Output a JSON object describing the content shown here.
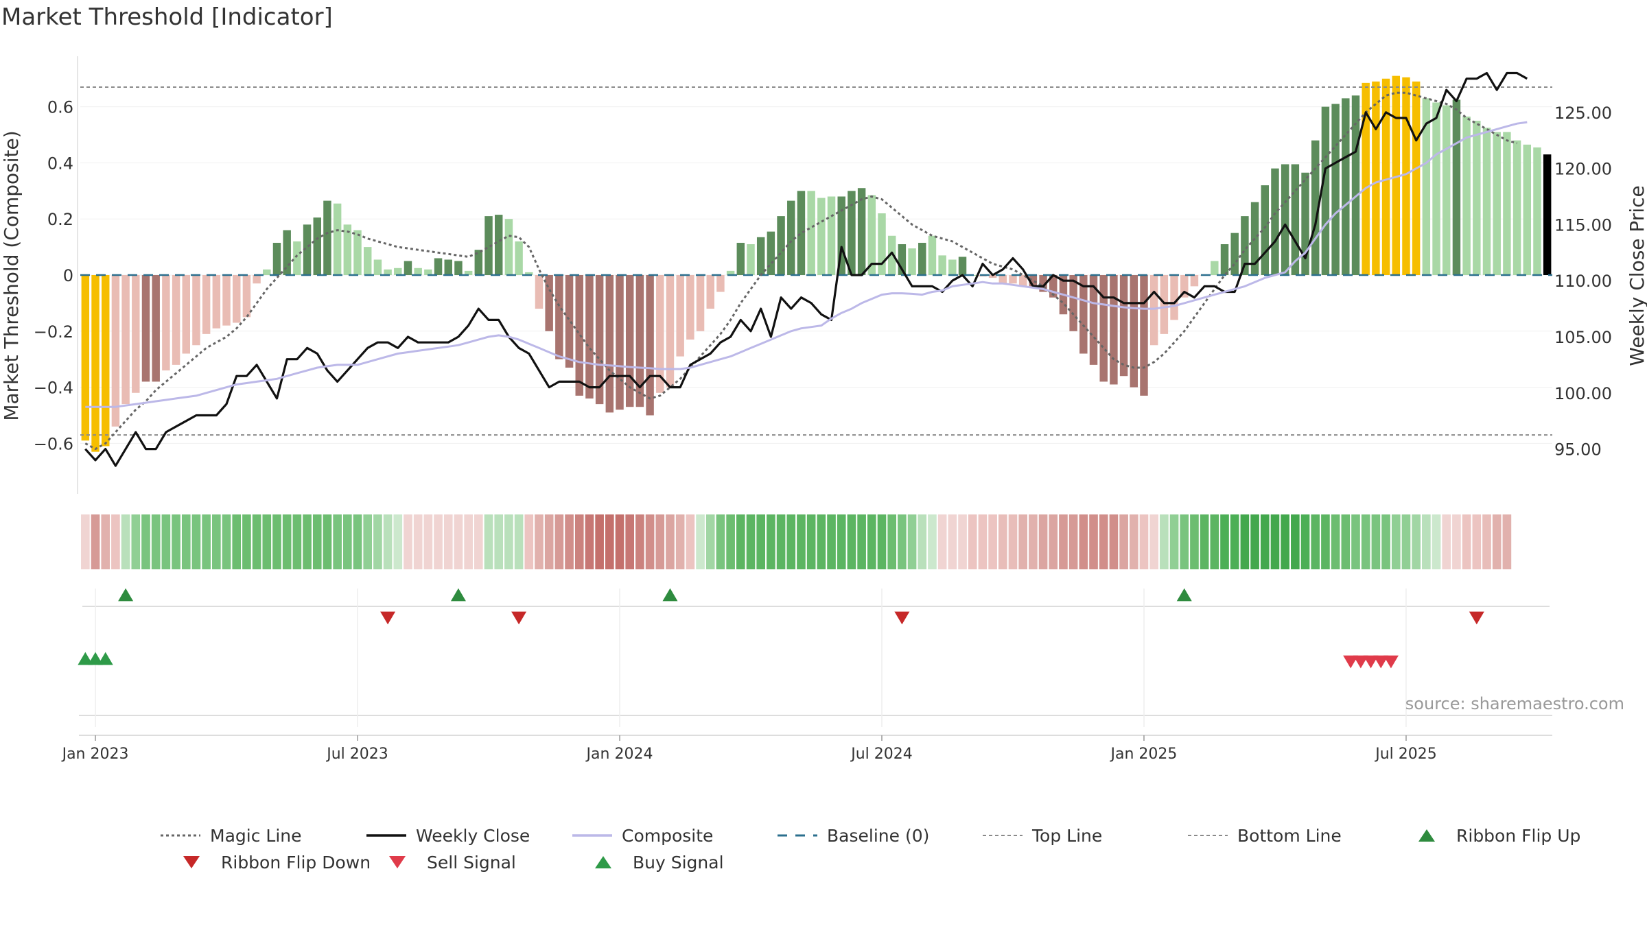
{
  "chart_data": {
    "type": "bar",
    "title": "Market Threshold [Indicator]",
    "ylabel_left": "Market Threshold (Composite)",
    "ylabel_right": "Weekly Close Price",
    "source": "source: sharemaestro.com",
    "ylim_left": [
      -0.78,
      0.78
    ],
    "ylim_right": [
      91.0,
      130.0
    ],
    "y_ticks_left": [
      {
        "v": 0.6,
        "label": "0.6"
      },
      {
        "v": 0.4,
        "label": "0.4"
      },
      {
        "v": 0.2,
        "label": "0.2"
      },
      {
        "v": 0,
        "label": "0"
      },
      {
        "v": -0.2,
        "label": "−0.2"
      },
      {
        "v": -0.4,
        "label": "−0.4"
      },
      {
        "v": -0.6,
        "label": "−0.6"
      }
    ],
    "y_ticks_right": [
      {
        "v": 125,
        "label": "125.00"
      },
      {
        "v": 120,
        "label": "120.00"
      },
      {
        "v": 115,
        "label": "115.00"
      },
      {
        "v": 110,
        "label": "110.00"
      },
      {
        "v": 105,
        "label": "105.00"
      },
      {
        "v": 100,
        "label": "100.00"
      },
      {
        "v": 95,
        "label": "95.00"
      }
    ],
    "x_ticks": [
      {
        "week": 1.5,
        "label": "Jan 2023"
      },
      {
        "week": 27.5,
        "label": "Jul 2023"
      },
      {
        "week": 53.5,
        "label": "Jan 2024"
      },
      {
        "week": 79.5,
        "label": "Jul 2024"
      },
      {
        "week": 105.5,
        "label": "Jan 2025"
      },
      {
        "week": 131.5,
        "label": "Jul 2025"
      }
    ],
    "top_line": 0.67,
    "bottom_line": -0.57,
    "baseline": 0,
    "bars": {
      "values": [
        -0.59,
        -0.63,
        -0.61,
        -0.54,
        -0.46,
        -0.42,
        -0.38,
        -0.38,
        -0.34,
        -0.32,
        -0.28,
        -0.25,
        -0.21,
        -0.19,
        -0.18,
        -0.17,
        -0.15,
        -0.03,
        0.02,
        0.115,
        0.16,
        0.12,
        0.18,
        0.205,
        0.265,
        0.255,
        0.18,
        0.16,
        0.1,
        0.055,
        0.02,
        0.025,
        0.05,
        0.025,
        0.02,
        0.06,
        0.055,
        0.05,
        0.015,
        0.09,
        0.21,
        0.215,
        0.2,
        0.12,
        0.01,
        -0.12,
        -0.2,
        -0.3,
        -0.33,
        -0.43,
        -0.44,
        -0.46,
        -0.49,
        -0.48,
        -0.47,
        -0.47,
        -0.5,
        -0.42,
        -0.4,
        -0.29,
        -0.23,
        -0.2,
        -0.12,
        -0.06,
        0.015,
        0.115,
        0.11,
        0.135,
        0.155,
        0.21,
        0.265,
        0.3,
        0.3,
        0.275,
        0.28,
        0.28,
        0.3,
        0.31,
        0.285,
        0.22,
        0.14,
        0.11,
        0.095,
        0.115,
        0.14,
        0.07,
        0.055,
        0.065,
        0.0,
        -0.005,
        -0.01,
        -0.03,
        -0.03,
        -0.04,
        -0.04,
        -0.06,
        -0.08,
        -0.14,
        -0.2,
        -0.28,
        -0.32,
        -0.38,
        -0.39,
        -0.36,
        -0.4,
        -0.43,
        -0.25,
        -0.21,
        -0.16,
        -0.08,
        -0.04,
        0.0,
        0.05,
        0.11,
        0.15,
        0.21,
        0.26,
        0.32,
        0.38,
        0.395,
        0.395,
        0.365,
        0.48,
        0.6,
        0.61,
        0.63,
        0.64,
        0.685,
        0.69,
        0.7,
        0.71,
        0.705,
        0.69,
        0.63,
        0.615,
        0.605,
        0.625,
        0.565,
        0.55,
        0.525,
        0.51,
        0.51,
        0.48,
        0.465,
        0.455,
        0.43
      ],
      "colors": [
        "#f6be00",
        "#f6be00",
        "#f6be00",
        "#e9bcb4",
        "#e9bcb4",
        "#e9bcb4",
        "#a8746f",
        "#a8746f",
        "#e9bcb4",
        "#e9bcb4",
        "#e9bcb4",
        "#e9bcb4",
        "#e9bcb4",
        "#e9bcb4",
        "#e9bcb4",
        "#e9bcb4",
        "#e9bcb4",
        "#e9bcb4",
        "#a9d8a6",
        "#5c8c5b",
        "#5c8c5b",
        "#a9d8a6",
        "#5c8c5b",
        "#5c8c5b",
        "#5c8c5b",
        "#a9d8a6",
        "#a9d8a6",
        "#a9d8a6",
        "#a9d8a6",
        "#a9d8a6",
        "#a9d8a6",
        "#a9d8a6",
        "#5c8c5b",
        "#a9d8a6",
        "#a9d8a6",
        "#5c8c5b",
        "#5c8c5b",
        "#5c8c5b",
        "#a9d8a6",
        "#5c8c5b",
        "#5c8c5b",
        "#5c8c5b",
        "#a9d8a6",
        "#a9d8a6",
        "#a9d8a6",
        "#e9bcb4",
        "#a8746f",
        "#a8746f",
        "#a8746f",
        "#a8746f",
        "#a8746f",
        "#a8746f",
        "#a8746f",
        "#a8746f",
        "#a8746f",
        "#a8746f",
        "#a8746f",
        "#e9bcb4",
        "#e9bcb4",
        "#e9bcb4",
        "#e9bcb4",
        "#e9bcb4",
        "#e9bcb4",
        "#e9bcb4",
        "#a9d8a6",
        "#5c8c5b",
        "#a9d8a6",
        "#5c8c5b",
        "#5c8c5b",
        "#5c8c5b",
        "#5c8c5b",
        "#5c8c5b",
        "#a9d8a6",
        "#a9d8a6",
        "#a9d8a6",
        "#5c8c5b",
        "#5c8c5b",
        "#5c8c5b",
        "#a9d8a6",
        "#a9d8a6",
        "#a9d8a6",
        "#5c8c5b",
        "#a9d8a6",
        "#5c8c5b",
        "#a9d8a6",
        "#a9d8a6",
        "#a9d8a6",
        "#5c8c5b",
        "#a9d8a6",
        "#e9bcb4",
        "#e9bcb4",
        "#e9bcb4",
        "#e9bcb4",
        "#e9bcb4",
        "#a8746f",
        "#a8746f",
        "#a8746f",
        "#a8746f",
        "#a8746f",
        "#a8746f",
        "#a8746f",
        "#a8746f",
        "#a8746f",
        "#a8746f",
        "#a8746f",
        "#a8746f",
        "#e9bcb4",
        "#e9bcb4",
        "#e9bcb4",
        "#e9bcb4",
        "#e9bcb4",
        "#e9bcb4",
        "#a9d8a6",
        "#5c8c5b",
        "#5c8c5b",
        "#5c8c5b",
        "#5c8c5b",
        "#5c8c5b",
        "#5c8c5b",
        "#5c8c5b",
        "#5c8c5b",
        "#5c8c5b",
        "#5c8c5b",
        "#5c8c5b",
        "#5c8c5b",
        "#5c8c5b",
        "#5c8c5b",
        "#f6be00",
        "#f6be00",
        "#f6be00",
        "#f6be00",
        "#f6be00",
        "#f6be00",
        "#a9d8a6",
        "#a9d8a6",
        "#a9d8a6",
        "#5c8c5b",
        "#a9d8a6",
        "#a9d8a6",
        "#a9d8a6",
        "#a9d8a6",
        "#a9d8a6",
        "#a9d8a6",
        "#a9d8a6",
        "#a9d8a6"
      ]
    },
    "series": [
      {
        "name": "Magic Line",
        "axis": "left",
        "color": "#666666",
        "values": [
          -0.6,
          -0.62,
          -0.6,
          -0.56,
          -0.52,
          -0.48,
          -0.45,
          -0.41,
          -0.38,
          -0.35,
          -0.32,
          -0.29,
          -0.26,
          -0.24,
          -0.22,
          -0.19,
          -0.15,
          -0.1,
          -0.05,
          -0.01,
          0.03,
          0.07,
          0.1,
          0.13,
          0.15,
          0.16,
          0.155,
          0.145,
          0.13,
          0.12,
          0.11,
          0.1,
          0.095,
          0.09,
          0.085,
          0.08,
          0.075,
          0.07,
          0.065,
          0.08,
          0.1,
          0.12,
          0.14,
          0.135,
          0.1,
          0.02,
          -0.05,
          -0.11,
          -0.16,
          -0.21,
          -0.26,
          -0.3,
          -0.34,
          -0.37,
          -0.4,
          -0.42,
          -0.44,
          -0.43,
          -0.4,
          -0.37,
          -0.33,
          -0.29,
          -0.25,
          -0.21,
          -0.16,
          -0.1,
          -0.05,
          0.0,
          0.04,
          0.08,
          0.12,
          0.15,
          0.17,
          0.19,
          0.21,
          0.23,
          0.25,
          0.27,
          0.28,
          0.27,
          0.24,
          0.21,
          0.18,
          0.16,
          0.14,
          0.13,
          0.12,
          0.1,
          0.08,
          0.06,
          0.04,
          0.03,
          0.02,
          0.0,
          -0.02,
          -0.04,
          -0.07,
          -0.1,
          -0.14,
          -0.18,
          -0.22,
          -0.26,
          -0.3,
          -0.32,
          -0.33,
          -0.33,
          -0.31,
          -0.28,
          -0.24,
          -0.2,
          -0.15,
          -0.1,
          -0.05,
          0.0,
          0.04,
          0.09,
          0.13,
          0.17,
          0.22,
          0.26,
          0.3,
          0.34,
          0.38,
          0.42,
          0.46,
          0.5,
          0.54,
          0.58,
          0.61,
          0.64,
          0.65,
          0.65,
          0.64,
          0.63,
          0.62,
          0.61,
          0.59,
          0.56,
          0.54,
          0.52,
          0.5,
          0.48,
          0.47
        ]
      },
      {
        "name": "Weekly Close",
        "axis": "right",
        "color": "#111111",
        "values": [
          95.0,
          94.0,
          95.0,
          93.5,
          95.0,
          96.5,
          95.0,
          95.0,
          96.5,
          97.0,
          97.5,
          98.0,
          98.0,
          98.0,
          99.0,
          101.5,
          101.5,
          102.5,
          101.0,
          99.5,
          103.0,
          103.0,
          104.0,
          103.5,
          102.0,
          101.0,
          102.0,
          103.0,
          104.0,
          104.5,
          104.5,
          104.0,
          105.0,
          104.5,
          104.5,
          104.5,
          104.5,
          105.0,
          106.0,
          107.5,
          106.5,
          106.5,
          105.0,
          104.0,
          103.5,
          102.0,
          100.5,
          101.0,
          101.0,
          101.0,
          100.5,
          100.5,
          101.5,
          101.5,
          101.5,
          100.5,
          101.5,
          101.5,
          100.5,
          100.5,
          102.5,
          103.0,
          103.5,
          104.5,
          105.0,
          106.5,
          105.5,
          107.5,
          105.0,
          108.5,
          107.5,
          108.5,
          108.0,
          107.0,
          106.5,
          113.0,
          110.5,
          110.5,
          111.5,
          111.5,
          112.5,
          111.0,
          109.5,
          109.5,
          109.5,
          109.0,
          110.0,
          110.5,
          109.5,
          111.5,
          110.5,
          111.0,
          112.0,
          111.0,
          109.5,
          109.5,
          110.5,
          110.0,
          110.0,
          109.5,
          109.5,
          108.5,
          108.5,
          108.0,
          108.0,
          108.0,
          109.0,
          108.0,
          108.0,
          109.0,
          108.5,
          109.5,
          109.5,
          109.0,
          109.0,
          111.5,
          111.5,
          112.5,
          113.5,
          115.0,
          113.5,
          112.0,
          115.0,
          120.0,
          120.5,
          121.0,
          121.5,
          125.0,
          123.5,
          125.0,
          124.5,
          124.5,
          122.5,
          124.0,
          124.5,
          127.0,
          126.0,
          128.0,
          128.0,
          128.5,
          127.0,
          128.5,
          128.5,
          128.0
        ]
      },
      {
        "name": "Composite",
        "axis": "left",
        "color": "#bcb8e8",
        "values": [
          -0.47,
          -0.47,
          -0.47,
          -0.47,
          -0.465,
          -0.46,
          -0.455,
          -0.45,
          -0.445,
          -0.44,
          -0.435,
          -0.43,
          -0.42,
          -0.41,
          -0.4,
          -0.39,
          -0.385,
          -0.38,
          -0.375,
          -0.37,
          -0.36,
          -0.35,
          -0.34,
          -0.33,
          -0.325,
          -0.32,
          -0.32,
          -0.32,
          -0.31,
          -0.3,
          -0.29,
          -0.28,
          -0.275,
          -0.27,
          -0.265,
          -0.26,
          -0.255,
          -0.25,
          -0.24,
          -0.23,
          -0.22,
          -0.215,
          -0.22,
          -0.23,
          -0.245,
          -0.26,
          -0.275,
          -0.29,
          -0.3,
          -0.31,
          -0.315,
          -0.32,
          -0.322,
          -0.325,
          -0.328,
          -0.33,
          -0.332,
          -0.335,
          -0.335,
          -0.335,
          -0.33,
          -0.32,
          -0.31,
          -0.3,
          -0.29,
          -0.275,
          -0.26,
          -0.245,
          -0.23,
          -0.215,
          -0.2,
          -0.19,
          -0.185,
          -0.18,
          -0.155,
          -0.135,
          -0.12,
          -0.1,
          -0.085,
          -0.07,
          -0.065,
          -0.065,
          -0.067,
          -0.07,
          -0.06,
          -0.055,
          -0.04,
          -0.035,
          -0.03,
          -0.025,
          -0.03,
          -0.03,
          -0.035,
          -0.04,
          -0.045,
          -0.05,
          -0.06,
          -0.07,
          -0.08,
          -0.09,
          -0.1,
          -0.105,
          -0.11,
          -0.115,
          -0.118,
          -0.12,
          -0.12,
          -0.115,
          -0.11,
          -0.1,
          -0.09,
          -0.08,
          -0.07,
          -0.06,
          -0.05,
          -0.04,
          -0.025,
          -0.01,
          0.0,
          0.01,
          0.05,
          0.08,
          0.13,
          0.18,
          0.22,
          0.25,
          0.28,
          0.31,
          0.33,
          0.34,
          0.35,
          0.36,
          0.38,
          0.4,
          0.43,
          0.45,
          0.47,
          0.49,
          0.5,
          0.51,
          0.52,
          0.53,
          0.54,
          0.545
        ]
      }
    ],
    "ribbon": {
      "colors": [
        "#f0d4d2",
        "#d69a96",
        "#e1b1ad",
        "#ecc4c1",
        "#b9e0bb",
        "#90cf94",
        "#79c47e",
        "#79c47e",
        "#79c47e",
        "#79c47e",
        "#79c47e",
        "#79c47e",
        "#79c47e",
        "#79c47e",
        "#79c47e",
        "#6cbd70",
        "#6cbd70",
        "#6cbd70",
        "#6cbd70",
        "#6cbd70",
        "#6cbd70",
        "#6cbd70",
        "#6cbd70",
        "#6cbd70",
        "#6cbd70",
        "#79c47e",
        "#79c47e",
        "#79c47e",
        "#90cf94",
        "#a1d6a4",
        "#b9e0bb",
        "#cce8cd",
        "#f0d4d2",
        "#f0d4d2",
        "#f0d4d2",
        "#f0d4d2",
        "#f0d4d2",
        "#f0d4d2",
        "#f0d4d2",
        "#f0d4d2",
        "#b9e0bb",
        "#b9e0bb",
        "#b9e0bb",
        "#b9e0bb",
        "#ecc4c1",
        "#e1b1ad",
        "#dba5a1",
        "#d69a96",
        "#d18e8a",
        "#cb827e",
        "#c77774",
        "#c4706c",
        "#c4706c",
        "#c4706c",
        "#c77774",
        "#cb827e",
        "#d18e8a",
        "#d69a96",
        "#dba5a1",
        "#e1b1ad",
        "#ecc4c1",
        "#cce8cd",
        "#a1d6a4",
        "#79c47e",
        "#6cbd70",
        "#5cb562",
        "#5cb562",
        "#5cb562",
        "#5cb562",
        "#5cb562",
        "#5cb562",
        "#5cb562",
        "#5cb562",
        "#5cb562",
        "#5cb562",
        "#5cb562",
        "#5cb562",
        "#5cb562",
        "#5cb562",
        "#5cb562",
        "#6cbd70",
        "#79c47e",
        "#90cf94",
        "#b9e0bb",
        "#cce8cd",
        "#f0d4d2",
        "#f0d4d2",
        "#f0d4d2",
        "#ecc4c1",
        "#ecc4c1",
        "#ecc4c1",
        "#e8bdb9",
        "#e8bdb9",
        "#e1b1ad",
        "#e1b1ad",
        "#dba5a1",
        "#dba5a1",
        "#d69a96",
        "#d69a96",
        "#d18e8a",
        "#d18e8a",
        "#d18e8a",
        "#d18e8a",
        "#dba5a1",
        "#e1b1ad",
        "#ecc4c1",
        "#f0d4d2",
        "#b9e0bb",
        "#90cf94",
        "#79c47e",
        "#6cbd70",
        "#5cb562",
        "#5cb562",
        "#4caf56",
        "#4caf56",
        "#43a84d",
        "#43a84d",
        "#43a84d",
        "#43a84d",
        "#43a84d",
        "#43a84d",
        "#4caf56",
        "#5cb562",
        "#5cb562",
        "#6cbd70",
        "#6cbd70",
        "#79c47e",
        "#79c47e",
        "#79c47e",
        "#79c47e",
        "#90cf94",
        "#90cf94",
        "#a1d6a4",
        "#b9e0bb",
        "#cce8cd",
        "#f0d4d2",
        "#f0d4d2",
        "#ecc4c1",
        "#ecc4c1",
        "#e8bdb9",
        "#e1b1ad",
        "#e1b1ad"
      ]
    },
    "signals": {
      "flip_up": [
        4.5,
        37.5,
        58.5,
        109.5
      ],
      "flip_down": [
        30.5,
        43.5,
        81.5,
        138.5
      ],
      "buy": [
        0.5,
        1.5,
        2.5
      ],
      "sell": [
        126.0,
        127.0,
        128.0,
        129.0,
        130.0
      ]
    },
    "legend": [
      {
        "label": "Magic Line",
        "kind": "line-dotted",
        "color": "#666666"
      },
      {
        "label": "Weekly Close",
        "kind": "line-solid",
        "color": "#111111"
      },
      {
        "label": "Composite",
        "kind": "line-solid",
        "color": "#bcb8e8"
      },
      {
        "label": "Baseline (0)",
        "kind": "line-dashed",
        "color": "#2b6f8e"
      },
      {
        "label": "Top Line",
        "kind": "line-dotted-light",
        "color": "#8a8a8a"
      },
      {
        "label": "Bottom Line",
        "kind": "line-dotted-light",
        "color": "#8a8a8a"
      },
      {
        "label": "Ribbon Flip Up",
        "kind": "tri-up",
        "color": "#2e8b3e"
      },
      {
        "label": "Ribbon Flip Down",
        "kind": "tri-down",
        "color": "#c62828"
      },
      {
        "label": "Sell Signal",
        "kind": "tri-down",
        "color": "#e03b4a"
      },
      {
        "label": "Buy Signal",
        "kind": "tri-up",
        "color": "#2e9a48"
      }
    ]
  }
}
